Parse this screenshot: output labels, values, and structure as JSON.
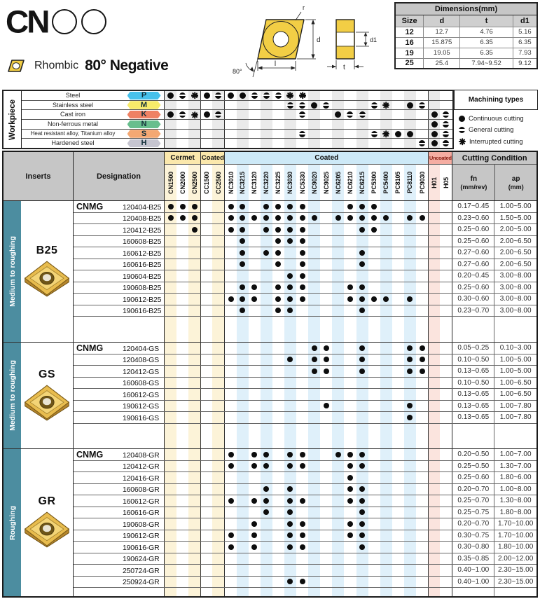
{
  "header": {
    "logo_text": "CN",
    "shape_label": "Rhombic",
    "angle_label": "80° Negative"
  },
  "drawing": {
    "labels": {
      "r": "r",
      "d": "d",
      "l": "l",
      "angle": "80°",
      "t": "t",
      "d1": "d1"
    },
    "insert_color": "#F2CE45"
  },
  "dimensions_table": {
    "title": "Dimensions(mm)",
    "columns": [
      "Size",
      "d",
      "t",
      "d1"
    ],
    "rows": [
      [
        "12",
        "12.7",
        "4.76",
        "5.16"
      ],
      [
        "16",
        "15.875",
        "6.35",
        "6.35"
      ],
      [
        "19",
        "19.05",
        "6.35",
        "7.93"
      ],
      [
        "25",
        "25.4",
        "7.94~9.52",
        "9.12"
      ]
    ]
  },
  "grade_groups": [
    {
      "label": "Cermet",
      "type": "cermet",
      "columns": [
        "CN1500",
        "CN2000",
        "CN2500"
      ]
    },
    {
      "label": "Coated",
      "type": "cermet",
      "columns": [
        "CC1500",
        "CC2500"
      ]
    },
    {
      "label": "Coated",
      "type": "coated",
      "columns": [
        "NC3010",
        "NC3215",
        "NC3120",
        "NC3220",
        "NC3225",
        "NC3030",
        "NC5330",
        "NC9020",
        "NC9025",
        "NC6205",
        "NC6210",
        "NC6215",
        "PC5300",
        "PC5400",
        "PC8105",
        "PC8110",
        "PC9030"
      ]
    },
    {
      "label": "Uncoated",
      "type": "uncoated",
      "columns": [
        "H01",
        "H05"
      ]
    }
  ],
  "workpiece": {
    "title": "Workpiece",
    "rows": [
      {
        "label": "Steel",
        "code": "P",
        "color": "#47c1eb",
        "marks": {
          "CN1500": "C",
          "CN2000": "G",
          "CN2500": "I",
          "CC1500": "C",
          "CC2500": "G",
          "NC3010": "C",
          "NC3215": "C",
          "NC3120": "G",
          "NC3220": "G",
          "NC3225": "G",
          "NC3030": "I",
          "NC5330": "I"
        }
      },
      {
        "label": "Stainless steel",
        "code": "M",
        "color": "#f8eb6a",
        "marks": {
          "NC3030": "G",
          "NC5330": "G",
          "NC9020": "C",
          "NC9025": "G",
          "PC5300": "G",
          "PC5400": "I",
          "PC8110": "C",
          "PC9030": "G"
        }
      },
      {
        "label": "Cast iron",
        "code": "K",
        "color": "#ef8164",
        "marks": {
          "CN1500": "C",
          "CN2000": "G",
          "CN2500": "I",
          "CC1500": "C",
          "CC2500": "G",
          "NC5330": "G",
          "NC6205": "C",
          "NC6210": "G",
          "NC6215": "G",
          "H01": "C",
          "H05": "G"
        }
      },
      {
        "label": "Non-ferrous metal",
        "code": "N",
        "color": "#68be8d",
        "marks": {
          "H01": "C",
          "H05": "G"
        }
      },
      {
        "label": "Heat resistant alloy, Titanium alloy",
        "code": "S",
        "color": "#f4a873",
        "marks": {
          "NC5330": "G",
          "PC5300": "G",
          "PC5400": "I",
          "PC8105": "C",
          "PC8110": "C",
          "H01": "C",
          "H05": "G"
        }
      },
      {
        "label": "Hardened steel",
        "code": "H",
        "color": "#c6c5d0",
        "marks": {
          "PC9030": "G",
          "H01": "C",
          "H05": "G"
        }
      }
    ],
    "machining_types": {
      "title": "Machining types",
      "legend": [
        {
          "symbol": "C",
          "label": "Continuous cutting"
        },
        {
          "symbol": "G",
          "label": "General cutting"
        },
        {
          "symbol": "I",
          "label": "Interrupted cutting"
        }
      ]
    }
  },
  "main_table": {
    "inserts_header": "Inserts",
    "designation_header": "Designation",
    "cutting_condition_header": "Cutting Condition",
    "fn_label": "fn",
    "fn_unit": "(mm/rev)",
    "ap_label": "ap",
    "ap_unit": "(mm)",
    "sections": [
      {
        "insert_name": "B25",
        "side_label": "Medium to roughing",
        "prefix": "CNMG",
        "rows": [
          {
            "designation": "120404-B25",
            "grades": [
              "CN1500",
              "CN2000",
              "CN2500",
              "NC3010",
              "NC3215",
              "NC3220",
              "NC3225",
              "NC3030",
              "NC5330",
              "NC6210",
              "NC6215",
              "PC5300"
            ],
            "fn": "0.17~0.45",
            "ap": "1.00~5.00"
          },
          {
            "designation": "120408-B25",
            "grades": [
              "CN1500",
              "CN2000",
              "CN2500",
              "NC3010",
              "NC3215",
              "NC3120",
              "NC3220",
              "NC3225",
              "NC3030",
              "NC5330",
              "NC9020",
              "NC6205",
              "NC6210",
              "NC6215",
              "PC5300",
              "PC5400",
              "PC8110",
              "PC9030"
            ],
            "fn": "0.23~0.60",
            "ap": "1.50~5.00"
          },
          {
            "designation": "120412-B25",
            "grades": [
              "CN2500",
              "NC3010",
              "NC3215",
              "NC3220",
              "NC3225",
              "NC3030",
              "NC5330",
              "NC6215",
              "PC5300"
            ],
            "fn": "0.25~0.60",
            "ap": "2.00~5.00"
          },
          {
            "designation": "160608-B25",
            "grades": [
              "NC3215",
              "NC3225",
              "NC3030",
              "NC5330"
            ],
            "fn": "0.25~0.60",
            "ap": "2.00~6.50"
          },
          {
            "designation": "160612-B25",
            "grades": [
              "NC3215",
              "NC3220",
              "NC3225",
              "NC5330",
              "NC6215"
            ],
            "fn": "0.27~0.60",
            "ap": "2.00~6.50"
          },
          {
            "designation": "160616-B25",
            "grades": [
              "NC3215",
              "NC3225",
              "NC5330",
              "NC6215"
            ],
            "fn": "0.27~0.60",
            "ap": "2.00~6.50"
          },
          {
            "designation": "190604-B25",
            "grades": [
              "NC3030",
              "NC5330"
            ],
            "fn": "0.20~0.45",
            "ap": "3.00~8.00"
          },
          {
            "designation": "190608-B25",
            "grades": [
              "NC3215",
              "NC3120",
              "NC3225",
              "NC3030",
              "NC5330",
              "NC6210",
              "NC6215"
            ],
            "fn": "0.25~0.60",
            "ap": "3.00~8.00"
          },
          {
            "designation": "190612-B25",
            "grades": [
              "NC3010",
              "NC3215",
              "NC3120",
              "NC3225",
              "NC3030",
              "NC5330",
              "NC6210",
              "NC6215",
              "PC5300",
              "PC5400",
              "PC8110"
            ],
            "fn": "0.30~0.60",
            "ap": "3.00~8.00"
          },
          {
            "designation": "190616-B25",
            "grades": [
              "NC3215",
              "NC3225",
              "NC3030",
              "NC6215"
            ],
            "fn": "0.23~0.70",
            "ap": "3.00~8.00"
          }
        ]
      },
      {
        "insert_name": "GS",
        "side_label": "Medium to roughing",
        "prefix": "CNMG",
        "rows": [
          {
            "designation": "120404-GS",
            "grades": [
              "NC9020",
              "NC9025",
              "NC6215",
              "PC8110",
              "PC9030"
            ],
            "fn": "0.05~0.25",
            "ap": "0.10~3.00"
          },
          {
            "designation": "120408-GS",
            "grades": [
              "NC3030",
              "NC9020",
              "NC9025",
              "NC6215",
              "PC8110",
              "PC9030"
            ],
            "fn": "0.10~0.50",
            "ap": "1.00~5.00"
          },
          {
            "designation": "120412-GS",
            "grades": [
              "NC9020",
              "NC9025",
              "NC6215",
              "PC8110",
              "PC9030"
            ],
            "fn": "0.13~0.65",
            "ap": "1.00~5.00"
          },
          {
            "designation": "160608-GS",
            "grades": [],
            "fn": "0.10~0.50",
            "ap": "1.00~6.50"
          },
          {
            "designation": "160612-GS",
            "grades": [],
            "fn": "0.13~0.65",
            "ap": "1.00~6.50"
          },
          {
            "designation": "190612-GS",
            "grades": [
              "NC9025",
              "PC8110"
            ],
            "fn": "0.13~0.65",
            "ap": "1.00~7.80"
          },
          {
            "designation": "190616-GS",
            "grades": [
              "PC8110"
            ],
            "fn": "0.13~0.65",
            "ap": "1.00~7.80"
          }
        ]
      },
      {
        "insert_name": "GR",
        "side_label": "Roughing",
        "prefix": "CNMG",
        "rows": [
          {
            "designation": "120408-GR",
            "grades": [
              "NC3010",
              "NC3120",
              "NC3220",
              "NC3030",
              "NC5330",
              "NC6205",
              "NC6210",
              "NC6215"
            ],
            "fn": "0.20~0.50",
            "ap": "1.00~7.00"
          },
          {
            "designation": "120412-GR",
            "grades": [
              "NC3010",
              "NC3120",
              "NC3220",
              "NC3030",
              "NC5330",
              "NC6210",
              "NC6215"
            ],
            "fn": "0.25~0.50",
            "ap": "1.30~7.00"
          },
          {
            "designation": "120416-GR",
            "grades": [
              "NC6210"
            ],
            "fn": "0.25~0.60",
            "ap": "1.80~6.00"
          },
          {
            "designation": "160608-GR",
            "grades": [
              "NC3220",
              "NC3030",
              "NC6210",
              "NC6215"
            ],
            "fn": "0.20~0.70",
            "ap": "1.00~8.00"
          },
          {
            "designation": "160612-GR",
            "grades": [
              "NC3010",
              "NC3120",
              "NC3220",
              "NC3030",
              "NC5330",
              "NC6210",
              "NC6215"
            ],
            "fn": "0.25~0.70",
            "ap": "1.30~8.00"
          },
          {
            "designation": "160616-GR",
            "grades": [
              "NC3220",
              "NC3030",
              "NC6215"
            ],
            "fn": "0.25~0.75",
            "ap": "1.80~8.00"
          },
          {
            "designation": "190608-GR",
            "grades": [
              "NC3120",
              "NC3030",
              "NC5330",
              "NC6210",
              "NC6215"
            ],
            "fn": "0.20~0.70",
            "ap": "1.70~10.00"
          },
          {
            "designation": "190612-GR",
            "grades": [
              "NC3010",
              "NC3120",
              "NC3030",
              "NC5330",
              "NC6210",
              "NC6215"
            ],
            "fn": "0.30~0.75",
            "ap": "1.70~10.00"
          },
          {
            "designation": "190616-GR",
            "grades": [
              "NC3010",
              "NC3120",
              "NC3030",
              "NC5330",
              "NC6215"
            ],
            "fn": "0.30~0.80",
            "ap": "1.80~10.00"
          },
          {
            "designation": "190624-GR",
            "grades": [],
            "fn": "0.35~0.85",
            "ap": "2.00~12.00"
          },
          {
            "designation": "250724-GR",
            "grades": [],
            "fn": "0.40~1.00",
            "ap": "2.30~15.00"
          },
          {
            "designation": "250924-GR",
            "grades": [
              "NC3030",
              "NC5330"
            ],
            "fn": "0.40~1.00",
            "ap": "2.30~15.00"
          }
        ]
      }
    ]
  },
  "colors": {
    "teal_sidebar": "#4c8da0",
    "header_gray": "#c6c6c6",
    "cermet_header": "#fbe8ac",
    "coated_header": "#cde9f7",
    "uncoated_header": "#f5ada2",
    "cermet_stripe": "#fcf3d8",
    "coated_stripe": "#dff0fa",
    "uncoated_stripe": "#fbe4de",
    "workpiece_stripe": "#eaeaea",
    "insert_gold": "#e8bc4e"
  }
}
